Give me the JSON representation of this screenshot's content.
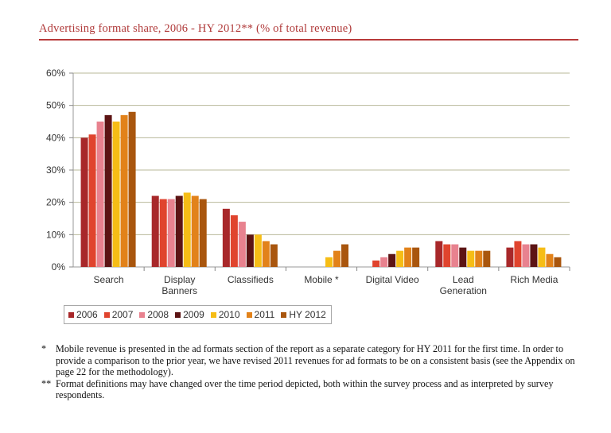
{
  "title": "Advertising format share, 2006 - HY 2012** (% of total revenue)",
  "chart_data": {
    "type": "bar",
    "title": "Advertising format share, 2006 - HY 2012** (% of total revenue)",
    "xlabel": "",
    "ylabel": "",
    "ylim": [
      0,
      60
    ],
    "yticks": [
      "0%",
      "10%",
      "20%",
      "30%",
      "40%",
      "50%",
      "60%"
    ],
    "grid": true,
    "legend_placement": "bottom",
    "categories": [
      [
        "Search"
      ],
      [
        "Display",
        "Banners"
      ],
      [
        "Classifieds"
      ],
      [
        "Mobile *"
      ],
      [
        "Digital Video"
      ],
      [
        "Lead",
        "Generation"
      ],
      [
        "Rich Media"
      ]
    ],
    "series": [
      {
        "name": "2006",
        "color": "#a8282a",
        "values": [
          40,
          22,
          18,
          0,
          0,
          8,
          6
        ]
      },
      {
        "name": "2007",
        "color": "#e0442e",
        "values": [
          41,
          21,
          16,
          0,
          2,
          7,
          8
        ]
      },
      {
        "name": "2008",
        "color": "#e8828f",
        "values": [
          45,
          21,
          14,
          0,
          3,
          7,
          7
        ]
      },
      {
        "name": "2009",
        "color": "#5c1414",
        "values": [
          47,
          22,
          10,
          0,
          4,
          6,
          7
        ]
      },
      {
        "name": "2010",
        "color": "#f6bd16",
        "values": [
          45,
          23,
          10,
          3,
          5,
          5,
          6
        ]
      },
      {
        "name": "2011",
        "color": "#e2821a",
        "values": [
          47,
          22,
          8,
          5,
          6,
          5,
          4
        ]
      },
      {
        "name": "HY 2012",
        "color": "#a9560e",
        "values": [
          48,
          21,
          7,
          7,
          6,
          5,
          3
        ]
      }
    ]
  },
  "notes": [
    {
      "mark": "*",
      "text": "Mobile revenue is presented in the ad formats section of the report as a separate category for HY 2011 for the first time. In order to provide a comparison to the prior year, we have revised 2011 revenues for ad formats to be on a consistent basis (see the Appendix on page 22 for the methodology)."
    },
    {
      "mark": "**",
      "text": "Format definitions may have changed over the time period depicted, both within the survey process and as interpreted by survey respondents."
    }
  ]
}
